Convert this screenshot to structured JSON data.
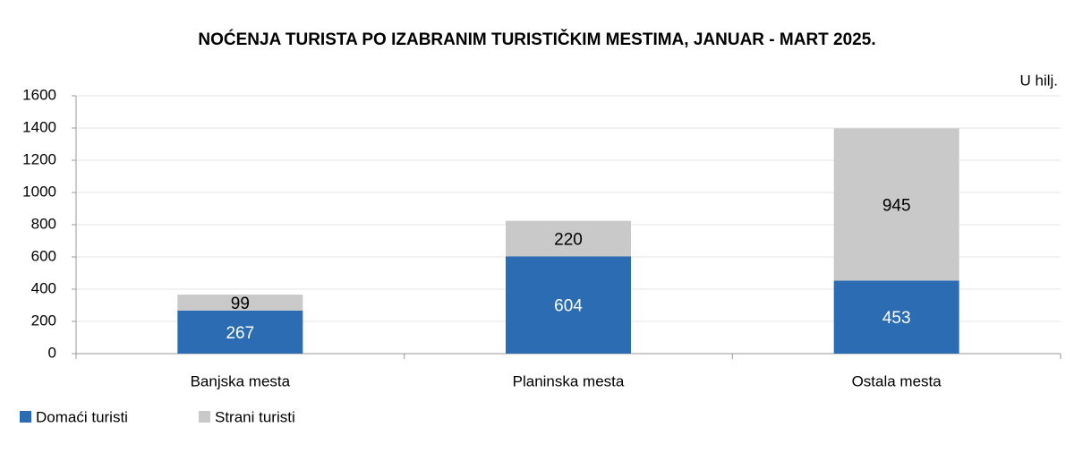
{
  "chart_data": {
    "type": "bar",
    "stacked": true,
    "title": "NOĆENJA TURISTA PO IZABRANIM TURISTIČKIM MESTIMA, JANUAR - MART 2025.",
    "unit_label": "U hilj.",
    "categories": [
      "Banjska mesta",
      "Planinska mesta",
      "Ostala mesta"
    ],
    "series": [
      {
        "name": "Domaći turisti",
        "color": "#2b6cb3",
        "label_color": "#ffffff",
        "values": [
          267,
          604,
          453
        ]
      },
      {
        "name": "Strani turisti",
        "color": "#c9c9c9",
        "label_color": "#000000",
        "values": [
          99,
          220,
          945
        ]
      }
    ],
    "ylim": [
      0,
      1600
    ],
    "yticks": [
      0,
      200,
      400,
      600,
      800,
      1000,
      1200,
      1400,
      1600
    ],
    "grid": true,
    "legend": "bottom-left"
  }
}
